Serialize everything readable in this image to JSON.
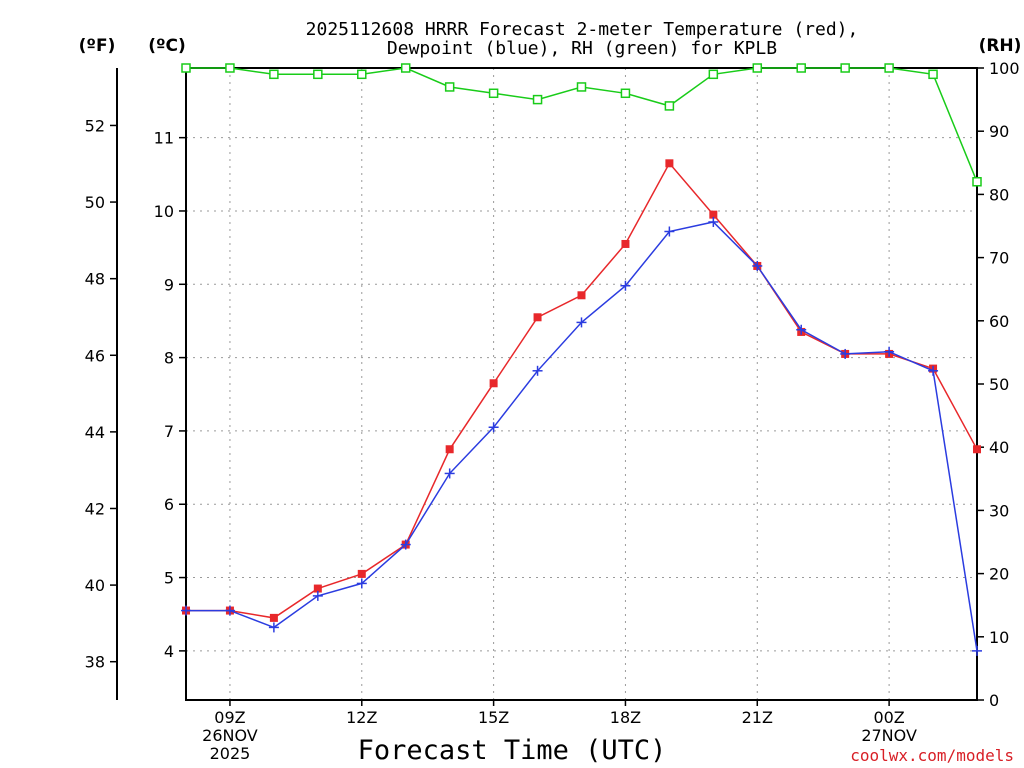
{
  "chart_data": {
    "type": "line",
    "title_lines": [
      "2025112608 HRRR Forecast 2-meter Temperature (red),",
      "Dewpoint (blue), RH (green) for KPLB"
    ],
    "xlabel": "Forecast Time (UTC)",
    "credit": "coolwx.com/models",
    "units": {
      "fahrenheit": "(ºF)",
      "celsius": "(ºC)",
      "rh": "(RH)"
    },
    "x_hours": [
      8,
      9,
      10,
      11,
      12,
      13,
      14,
      15,
      16,
      17,
      18,
      19,
      20,
      21,
      22,
      23,
      24,
      25,
      26
    ],
    "xlim": [
      8,
      26
    ],
    "x_ticks": [
      {
        "hour": 9,
        "lines": [
          "09Z",
          "26NOV",
          "2025"
        ]
      },
      {
        "hour": 12,
        "lines": [
          "12Z"
        ]
      },
      {
        "hour": 15,
        "lines": [
          "15Z"
        ]
      },
      {
        "hour": 18,
        "lines": [
          "18Z"
        ]
      },
      {
        "hour": 21,
        "lines": [
          "21Z"
        ]
      },
      {
        "hour": 24,
        "lines": [
          "00Z",
          "27NOV"
        ]
      }
    ],
    "celsius_axis": {
      "range": [
        3.33,
        11.95
      ],
      "ticks": [
        4,
        5,
        6,
        7,
        8,
        9,
        10,
        11
      ]
    },
    "fahrenheit_axis": {
      "range": [
        37.0,
        53.5
      ],
      "ticks": [
        38,
        40,
        42,
        44,
        46,
        48,
        50,
        52
      ]
    },
    "rh_axis": {
      "range": [
        0,
        100
      ],
      "ticks": [
        0,
        10,
        20,
        30,
        40,
        50,
        60,
        70,
        80,
        90,
        100
      ]
    },
    "series": [
      {
        "name": "Temperature",
        "axis": "celsius",
        "color": "#e8282b",
        "marker": "filled-square",
        "values": [
          4.55,
          4.55,
          4.45,
          4.85,
          5.05,
          5.45,
          6.75,
          7.65,
          8.55,
          8.85,
          9.55,
          10.65,
          9.95,
          9.25,
          8.35,
          8.05,
          8.05,
          7.85,
          6.75
        ]
      },
      {
        "name": "Dewpoint",
        "axis": "celsius",
        "color": "#2b3ce0",
        "marker": "plus",
        "values": [
          4.55,
          4.55,
          4.32,
          4.75,
          4.92,
          5.45,
          6.42,
          7.05,
          7.82,
          8.48,
          8.98,
          9.72,
          9.85,
          9.25,
          8.38,
          8.05,
          8.08,
          7.82,
          4.0
        ]
      },
      {
        "name": "RH",
        "axis": "rh",
        "color": "#19cc19",
        "marker": "open-square",
        "values": [
          100,
          100,
          99,
          99,
          99,
          100,
          97,
          96,
          95,
          97,
          96,
          94,
          99,
          100,
          100,
          100,
          100,
          99,
          82
        ]
      }
    ]
  }
}
